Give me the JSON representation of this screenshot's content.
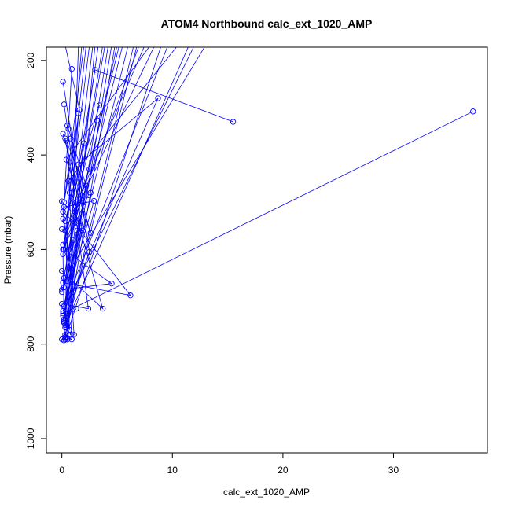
{
  "chart_data": {
    "type": "line",
    "title": "ATOM4 Northbound calc_ext_1020_AMP",
    "xlabel": "calc_ext_1020_AMP",
    "ylabel": "Pressure (mbar)",
    "xlim": [
      -1.4,
      38.5
    ],
    "ylim": [
      1030,
      172
    ],
    "y_reversed": true,
    "x_ticks": [
      0,
      10,
      20,
      30
    ],
    "y_ticks": [
      200,
      400,
      600,
      800,
      1000
    ],
    "grid": false,
    "legend": "none",
    "color": "#0000ff",
    "marker": "open-circle",
    "series": [
      {
        "x": [
          37.2,
          0.1,
          8.7,
          1.5,
          2.8
        ],
        "y": [
          308,
          735,
          280,
          420,
          168
        ]
      },
      {
        "x": [
          15.5,
          3.0,
          1.0,
          1.5
        ],
        "y": [
          330,
          220,
          500,
          168
        ]
      },
      {
        "x": [
          0.1,
          2.5,
          0.5,
          4.5
        ],
        "y": [
          245,
          605,
          735,
          168
        ]
      },
      {
        "x": [
          0.2,
          1.8,
          0.2,
          3.7
        ],
        "y": [
          293,
          555,
          680,
          168
        ]
      },
      {
        "x": [
          3.4,
          0.3,
          2.0,
          0.8,
          13.0
        ],
        "y": [
          295,
          540,
          375,
          640,
          168
        ]
      },
      {
        "x": [
          3.2,
          0.1,
          2.5,
          5.0
        ],
        "y": [
          327,
          590,
          430,
          168
        ]
      },
      {
        "x": [
          0.9,
          0.2,
          1.6,
          0.3
        ],
        "y": [
          218,
          500,
          305,
          168
        ]
      },
      {
        "x": [
          1.5,
          0.3,
          0.6,
          10.5
        ],
        "y": [
          312,
          765,
          455,
          168
        ]
      },
      {
        "x": [
          0.1,
          2.6,
          0.4,
          8.0
        ],
        "y": [
          355,
          565,
          410,
          168
        ]
      },
      {
        "x": [
          0.3,
          1.3,
          0.2,
          3.9
        ],
        "y": [
          365,
          500,
          660,
          168
        ]
      },
      {
        "x": [
          0.5,
          1.0,
          0.1,
          2.0
        ],
        "y": [
          338,
          690,
          520,
          168
        ]
      },
      {
        "x": [
          0.8,
          2.0,
          0.2,
          6.0
        ],
        "y": [
          365,
          500,
          720,
          168
        ]
      },
      {
        "x": [
          0.6,
          2.2,
          0.3,
          11.5
        ],
        "y": [
          345,
          465,
          760,
          168
        ]
      },
      {
        "x": [
          0.4,
          2.4,
          0.1,
          7.0
        ],
        "y": [
          370,
          485,
          600,
          168
        ]
      },
      {
        "x": [
          0.0,
          1.7,
          0.3,
          9.0
        ],
        "y": [
          498,
          540,
          790,
          168
        ]
      },
      {
        "x": [
          0.1,
          0.9,
          0.2,
          4.2
        ],
        "y": [
          535,
          640,
          748,
          168
        ]
      },
      {
        "x": [
          0.0,
          1.0,
          0.4,
          6.5
        ],
        "y": [
          557,
          580,
          765,
          168
        ]
      },
      {
        "x": [
          0.2,
          2.9,
          0.1,
          12.0
        ],
        "y": [
          510,
          497,
          730,
          168
        ]
      },
      {
        "x": [
          0.1,
          1.9,
          0.0,
          5.5
        ],
        "y": [
          520,
          560,
          690,
          168
        ]
      },
      {
        "x": [
          0.0,
          4.5,
          0.2,
          2.5
        ],
        "y": [
          685,
          672,
          600,
          168
        ]
      },
      {
        "x": [
          0.1,
          6.2,
          1.0,
          3.3
        ],
        "y": [
          670,
          697,
          540,
          168
        ]
      },
      {
        "x": [
          0.0,
          3.7,
          0.7,
          1.8
        ],
        "y": [
          645,
          725,
          480,
          168
        ]
      },
      {
        "x": [
          0.0,
          2.4,
          1.2,
          8.4
        ],
        "y": [
          715,
          725,
          520,
          168
        ]
      },
      {
        "x": [
          0.1,
          0.3,
          2.6,
          4.8
        ],
        "y": [
          740,
          785,
          480,
          168
        ]
      },
      {
        "x": [
          0.4,
          0.7,
          0.3,
          7.5
        ],
        "y": [
          735,
          770,
          560,
          168
        ]
      },
      {
        "x": [
          0.2,
          0.8,
          1.5,
          3.0
        ],
        "y": [
          755,
          780,
          540,
          168
        ]
      },
      {
        "x": [
          0.0,
          0.5,
          1.1,
          0.6,
          5.2
        ],
        "y": [
          790,
          790,
          780,
          600,
          168
        ]
      },
      {
        "x": [
          0.2,
          0.9,
          0.3,
          6.8
        ],
        "y": [
          792,
          790,
          780,
          168
        ]
      },
      {
        "x": [
          1.3,
          0.2,
          0.1,
          2.2
        ],
        "y": [
          725,
          752,
          610,
          168
        ]
      },
      {
        "x": [
          0.5,
          1.4,
          0.2,
          9.6
        ],
        "y": [
          790,
          560,
          720,
          168
        ]
      }
    ]
  }
}
